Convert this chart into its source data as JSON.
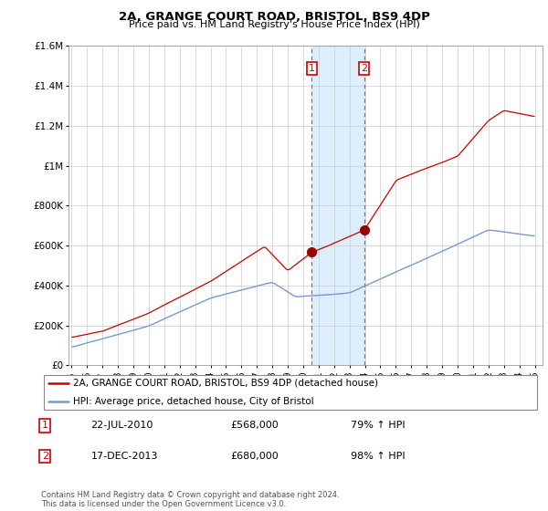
{
  "title": "2A, GRANGE COURT ROAD, BRISTOL, BS9 4DP",
  "subtitle": "Price paid vs. HM Land Registry's House Price Index (HPI)",
  "red_label": "2A, GRANGE COURT ROAD, BRISTOL, BS9 4DP (detached house)",
  "blue_label": "HPI: Average price, detached house, City of Bristol",
  "sale1_date": "22-JUL-2010",
  "sale1_price": 568000,
  "sale1_hpi": "79% ↑ HPI",
  "sale2_date": "17-DEC-2013",
  "sale2_price": 680000,
  "sale2_hpi": "98% ↑ HPI",
  "footnote": "Contains HM Land Registry data © Crown copyright and database right 2024.\nThis data is licensed under the Open Government Licence v3.0.",
  "ylim": [
    0,
    1600000
  ],
  "yticks": [
    0,
    200000,
    400000,
    600000,
    800000,
    1000000,
    1200000,
    1400000,
    1600000
  ],
  "ytick_labels": [
    "£0",
    "£200K",
    "£400K",
    "£600K",
    "£800K",
    "£1M",
    "£1.2M",
    "£1.4M",
    "£1.6M"
  ],
  "red_color": "#cc0000",
  "blue_color": "#7799cc",
  "highlight_color": "#ddeeff",
  "sale1_year": 2010.55,
  "sale2_year": 2013.96,
  "xmin": 1994.8,
  "xmax": 2025.5
}
